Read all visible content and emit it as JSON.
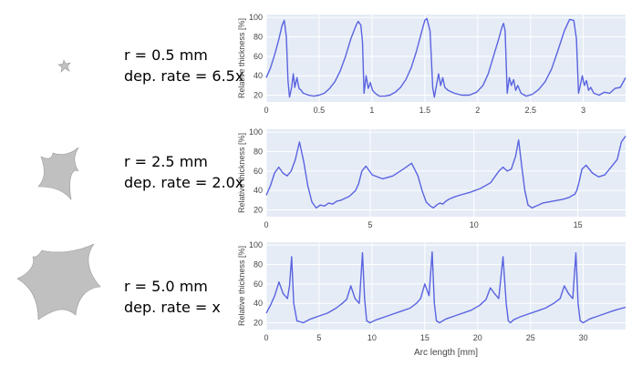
{
  "chart_data": [
    {
      "type": "line",
      "label_lines": [
        "r = 0.5 mm",
        "dep. rate = 6.5x"
      ],
      "ylabel": "Relative thickness [%]",
      "xlabel": "",
      "xlim": [
        0,
        3.4
      ],
      "ylim": [
        13,
        103
      ],
      "xticks": [
        0,
        0.5,
        1,
        1.5,
        2,
        2.5,
        3
      ],
      "xtick_labels": [
        "0",
        "0.5",
        "1",
        "1.5",
        "2",
        "2.5",
        "3"
      ],
      "yticks": [
        20,
        40,
        60,
        80,
        100
      ],
      "ytick_labels": [
        "20",
        "40",
        "60",
        "80",
        "100"
      ],
      "shape_color": "#c0c0c0",
      "line_color": "#5a63e0",
      "grid": true,
      "series": [
        {
          "x": [
            0,
            0.04,
            0.08,
            0.12,
            0.15,
            0.17,
            0.19,
            0.205,
            0.22,
            0.24,
            0.255,
            0.27,
            0.29,
            0.31,
            0.33,
            0.35,
            0.4,
            0.45,
            0.5,
            0.55,
            0.6,
            0.65,
            0.7,
            0.75,
            0.8,
            0.85,
            0.87,
            0.895,
            0.91,
            0.925,
            0.945,
            0.965,
            0.985,
            1.005,
            1.03,
            1.07,
            1.12,
            1.17,
            1.22,
            1.27,
            1.32,
            1.37,
            1.42,
            1.47,
            1.5,
            1.52,
            1.55,
            1.575,
            1.59,
            1.61,
            1.63,
            1.65,
            1.67,
            1.69,
            1.72,
            1.78,
            1.85,
            1.92,
            1.99,
            2.05,
            2.1,
            2.15,
            2.2,
            2.23,
            2.245,
            2.26,
            2.28,
            2.3,
            2.32,
            2.34,
            2.36,
            2.38,
            2.41,
            2.46,
            2.52,
            2.58,
            2.64,
            2.7,
            2.76,
            2.82,
            2.87,
            2.91,
            2.935,
            2.955,
            2.975,
            2.99,
            3.01,
            3.03,
            3.05,
            3.07,
            3.1,
            3.15,
            3.2,
            3.25,
            3.3,
            3.35,
            3.4
          ],
          "y": [
            38,
            48,
            62,
            78,
            92,
            97,
            80,
            35,
            18,
            28,
            42,
            28,
            38,
            27,
            25,
            22,
            20,
            19,
            20,
            22,
            27,
            34,
            45,
            60,
            78,
            92,
            96,
            92,
            75,
            22,
            40,
            27,
            33,
            25,
            22,
            19,
            19,
            20,
            23,
            28,
            36,
            48,
            65,
            85,
            97,
            99,
            86,
            28,
            18,
            30,
            42,
            30,
            38,
            28,
            25,
            22,
            20,
            20,
            23,
            30,
            42,
            60,
            78,
            90,
            94,
            86,
            22,
            38,
            30,
            36,
            25,
            30,
            22,
            19,
            21,
            26,
            34,
            47,
            66,
            86,
            98,
            97,
            78,
            22,
            32,
            40,
            30,
            35,
            25,
            28,
            22,
            20,
            23,
            22,
            27,
            28,
            38
          ]
        }
      ]
    },
    {
      "type": "line",
      "label_lines": [
        "r = 2.5 mm",
        "dep. rate = 2.0x"
      ],
      "ylabel": "Relative thickness [%]",
      "xlabel": "",
      "xlim": [
        0,
        17.3
      ],
      "ylim": [
        13,
        103
      ],
      "xticks": [
        0,
        5,
        10,
        15
      ],
      "xtick_labels": [
        "0",
        "5",
        "10",
        "15"
      ],
      "yticks": [
        20,
        40,
        60,
        80,
        100
      ],
      "ytick_labels": [
        "20",
        "40",
        "60",
        "80",
        "100"
      ],
      "shape_color": "#c0c0c0",
      "line_color": "#5a63e0",
      "grid": true,
      "series": [
        {
          "x": [
            0,
            0.2,
            0.4,
            0.6,
            0.8,
            1.0,
            1.2,
            1.4,
            1.6,
            1.8,
            2.0,
            2.2,
            2.4,
            2.6,
            2.8,
            3.0,
            3.2,
            3.4,
            3.6,
            3.8,
            4.0,
            4.1,
            4.2,
            4.3,
            4.45,
            4.6,
            4.8,
            5.1,
            5.6,
            6.1,
            6.6,
            7.0,
            7.3,
            7.5,
            7.7,
            7.9,
            8.05,
            8.2,
            8.35,
            8.5,
            8.65,
            8.8,
            9.0,
            9.3,
            9.8,
            10.3,
            10.8,
            11.2,
            11.4,
            11.6,
            11.8,
            12.0,
            12.15,
            12.3,
            12.45,
            12.6,
            12.8,
            13.0,
            13.3,
            13.8,
            14.3,
            14.6,
            14.75,
            14.85,
            14.95,
            15.05,
            15.2,
            15.4,
            15.7,
            16.0,
            16.3,
            16.6,
            16.9,
            17.1,
            17.3
          ],
          "y": [
            35,
            45,
            58,
            64,
            58,
            55,
            60,
            72,
            90,
            70,
            45,
            28,
            22,
            25,
            24,
            27,
            26,
            29,
            30,
            32,
            34,
            36,
            38,
            40,
            47,
            60,
            65,
            56,
            52,
            55,
            62,
            68,
            55,
            40,
            28,
            24,
            22,
            25,
            27,
            26,
            29,
            31,
            33,
            35,
            38,
            42,
            48,
            60,
            64,
            60,
            62,
            75,
            92,
            65,
            40,
            25,
            22,
            24,
            27,
            29,
            31,
            33,
            35,
            36,
            40,
            48,
            62,
            66,
            58,
            54,
            56,
            64,
            72,
            90,
            96
          ]
        }
      ]
    },
    {
      "type": "line",
      "label_lines": [
        "r = 5.0 mm",
        "dep. rate = x"
      ],
      "ylabel": "Relative thickness [%]",
      "xlabel": "Arc length [mm]",
      "xlim": [
        0,
        34
      ],
      "ylim": [
        13,
        103
      ],
      "xticks": [
        0,
        5,
        10,
        15,
        20,
        25,
        30
      ],
      "xtick_labels": [
        "0",
        "5",
        "10",
        "15",
        "20",
        "25",
        "30"
      ],
      "yticks": [
        20,
        40,
        60,
        80,
        100
      ],
      "ytick_labels": [
        "20",
        "40",
        "60",
        "80",
        "100"
      ],
      "shape_color": "#c0c0c0",
      "line_color": "#5a63e0",
      "grid": true,
      "series": [
        {
          "x": [
            0,
            0.4,
            0.8,
            1.2,
            1.6,
            2.0,
            2.2,
            2.4,
            2.6,
            2.9,
            3.5,
            4.2,
            5.0,
            5.8,
            6.6,
            7.2,
            7.6,
            8.0,
            8.4,
            8.8,
            9.1,
            9.3,
            9.5,
            9.8,
            10.4,
            11.2,
            12.0,
            12.8,
            13.6,
            14.2,
            14.6,
            15.0,
            15.4,
            15.7,
            15.9,
            16.1,
            16.4,
            17.0,
            17.8,
            18.6,
            19.4,
            20.2,
            20.8,
            21.2,
            21.6,
            22.0,
            22.4,
            22.7,
            22.9,
            23.1,
            23.4,
            24.0,
            24.8,
            25.6,
            26.4,
            27.2,
            27.8,
            28.2,
            28.6,
            29.0,
            29.3,
            29.5,
            29.7,
            30.0,
            30.6,
            31.4,
            32.2,
            33.0,
            34.0
          ],
          "y": [
            30,
            38,
            48,
            62,
            50,
            45,
            58,
            88,
            40,
            22,
            20,
            24,
            27,
            30,
            35,
            40,
            44,
            58,
            45,
            40,
            92,
            45,
            22,
            20,
            23,
            26,
            29,
            32,
            35,
            40,
            45,
            60,
            48,
            93,
            40,
            22,
            20,
            24,
            27,
            30,
            33,
            38,
            44,
            56,
            50,
            45,
            88,
            40,
            22,
            20,
            23,
            26,
            29,
            32,
            35,
            40,
            45,
            58,
            50,
            45,
            92,
            40,
            22,
            20,
            24,
            27,
            30,
            33,
            36
          ]
        }
      ]
    }
  ]
}
